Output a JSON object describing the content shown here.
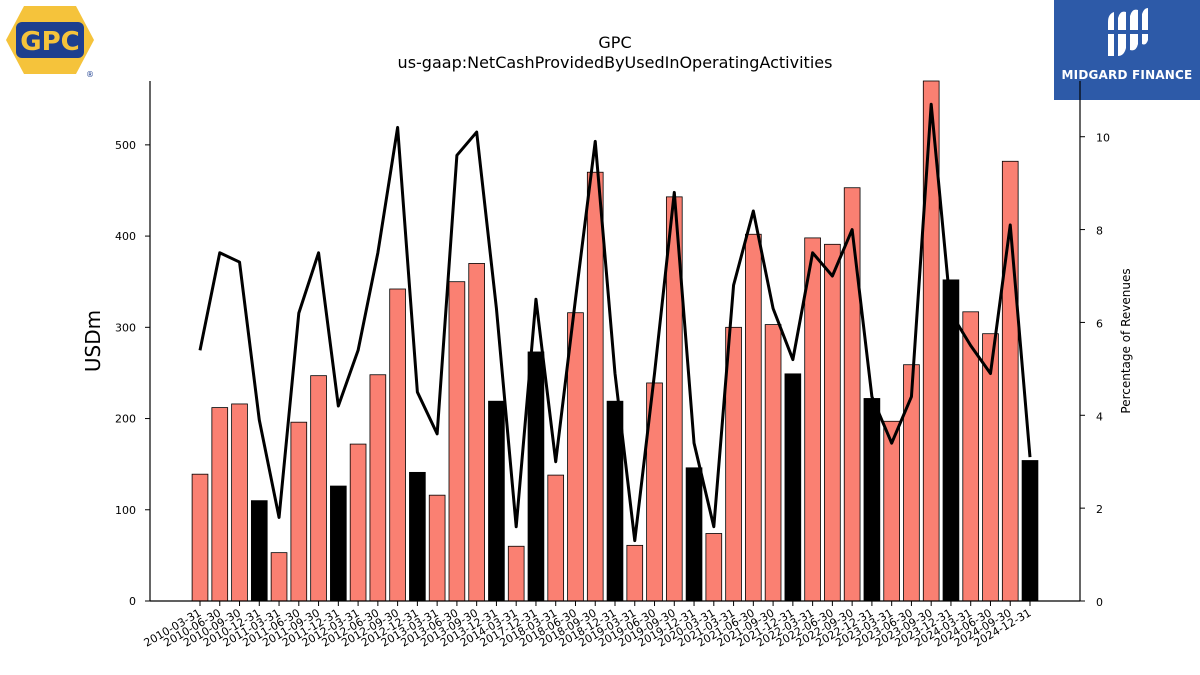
{
  "brand": {
    "gpc_logo_text": "GPC",
    "registered_mark": "®",
    "publisher_name": "MIDGARD FINANCE",
    "colors": {
      "gpc_yellow": "#f5c33b",
      "gpc_blue": "#1d3f8f",
      "midgard_blue": "#2d5aa8"
    }
  },
  "chart_data": {
    "type": "bar",
    "title": "GPC",
    "subtitle": "us-gaap:NetCashProvidedByUsedInOperatingActivities",
    "ylabel": "USDm",
    "y2label": "Percentage of Revenues",
    "ylim": [
      0,
      570
    ],
    "y2lim": [
      0,
      11.2
    ],
    "yticks": [
      0,
      100,
      200,
      300,
      400,
      500
    ],
    "y2ticks": [
      0,
      2,
      4,
      6,
      8,
      10
    ],
    "categories": [
      "2010-03-31",
      "2010-06-30",
      "2010-09-30",
      "2010-12-31",
      "2011-03-31",
      "2011-06-30",
      "2011-09-30",
      "2011-12-31",
      "2012-03-31",
      "2012-06-30",
      "2012-09-30",
      "2012-12-31",
      "2013-03-31",
      "2013-06-30",
      "2013-09-30",
      "2013-12-31",
      "2014-03-31",
      "2017-12-31",
      "2018-03-31",
      "2018-06-30",
      "2018-09-30",
      "2018-12-31",
      "2019-03-31",
      "2019-06-30",
      "2019-09-30",
      "2019-12-31",
      "2020-03-31",
      "2021-03-31",
      "2021-06-30",
      "2021-09-30",
      "2021-12-31",
      "2022-03-31",
      "2022-06-30",
      "2022-09-30",
      "2022-12-31",
      "2023-03-31",
      "2023-06-30",
      "2023-09-30",
      "2023-12-31",
      "2024-03-31",
      "2024-06-30",
      "2024-09-30",
      "2024-12-31"
    ],
    "series": [
      {
        "kind": "bar",
        "values": [
          139,
          212,
          216,
          110,
          53,
          196,
          247,
          126,
          172,
          248,
          342,
          141,
          116,
          350,
          370,
          219,
          60,
          273,
          138,
          316,
          470,
          219,
          61,
          239,
          443,
          146,
          74,
          300,
          402,
          303,
          249,
          398,
          391,
          453,
          222,
          197,
          259,
          570,
          352,
          317,
          293,
          482,
          154
        ]
      },
      {
        "kind": "line",
        "axis": "right",
        "values": [
          5.4,
          7.5,
          7.3,
          3.9,
          1.8,
          6.2,
          7.5,
          4.2,
          5.4,
          7.5,
          10.2,
          4.5,
          3.6,
          9.6,
          10.1,
          6.3,
          1.6,
          6.5,
          3.0,
          6.5,
          9.9,
          4.9,
          1.3,
          4.9,
          8.8,
          3.4,
          1.6,
          6.8,
          8.4,
          6.3,
          5.2,
          7.5,
          7.0,
          8.0,
          4.4,
          3.4,
          4.4,
          10.7,
          6.2,
          5.5,
          4.9,
          8.1,
          3.1
        ]
      }
    ],
    "bar_colors": {
      "default": "#fa8072",
      "year_end": "#000000",
      "edge": "#000000"
    },
    "line_color": "#000000",
    "grid": false
  }
}
